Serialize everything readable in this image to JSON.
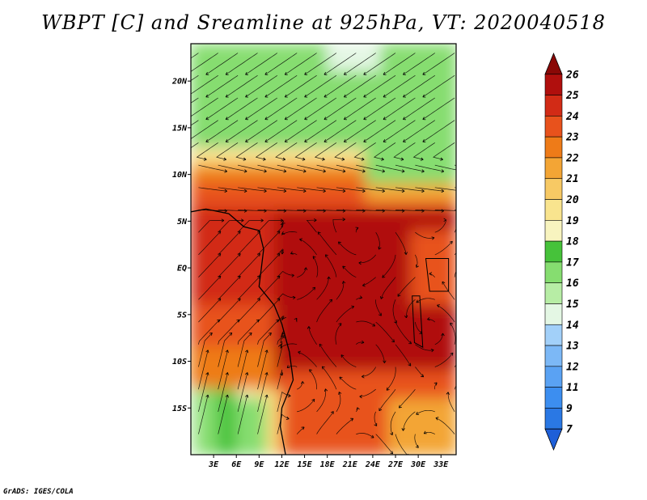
{
  "title": "WBPT [C] and Sreamline at 925hPa, VT: 2020040518",
  "credit": "GrADS: IGES/COLA",
  "chart_data": {
    "type": "heatmap",
    "title": "WBPT [C] and Sreamline at 925hPa, VT: 2020040518",
    "variable": "Wet-bulb potential temperature [C]",
    "overlay": "streamlines",
    "level": "925hPa",
    "valid_time": "2020040518",
    "x_range": [
      0,
      35
    ],
    "y_range": [
      -20,
      24
    ],
    "x_ticks": [
      {
        "value": 3,
        "label": "3E"
      },
      {
        "value": 6,
        "label": "6E"
      },
      {
        "value": 9,
        "label": "9E"
      },
      {
        "value": 12,
        "label": "12E"
      },
      {
        "value": 15,
        "label": "15E"
      },
      {
        "value": 18,
        "label": "18E"
      },
      {
        "value": 21,
        "label": "21E"
      },
      {
        "value": 24,
        "label": "24E"
      },
      {
        "value": 27,
        "label": "27E"
      },
      {
        "value": 30,
        "label": "30E"
      },
      {
        "value": 33,
        "label": "33E"
      }
    ],
    "y_ticks": [
      {
        "value": 20,
        "label": "20N"
      },
      {
        "value": 15,
        "label": "15N"
      },
      {
        "value": 10,
        "label": "10N"
      },
      {
        "value": 5,
        "label": "5N"
      },
      {
        "value": 0,
        "label": "EQ"
      },
      {
        "value": -5,
        "label": "5S"
      },
      {
        "value": -10,
        "label": "10S"
      },
      {
        "value": -15,
        "label": "15S"
      }
    ],
    "colorbar": {
      "levels": [
        "7",
        "9",
        "11",
        "12",
        "13",
        "14",
        "15",
        "16",
        "17",
        "18",
        "19",
        "20",
        "21",
        "22",
        "23",
        "24",
        "25",
        "26"
      ],
      "colors": [
        "#1e5fd8",
        "#2a78e4",
        "#3c8ef0",
        "#5aa2f3",
        "#7cb8f6",
        "#a2d0f9",
        "#e4f7e4",
        "#b7eda5",
        "#86dd70",
        "#46c23a",
        "#f8f4bf",
        "#f9e48e",
        "#f7c964",
        "#f3a535",
        "#ee7b18",
        "#e8521c",
        "#d22b16",
        "#b00f0d",
        "#8a0806"
      ]
    }
  }
}
